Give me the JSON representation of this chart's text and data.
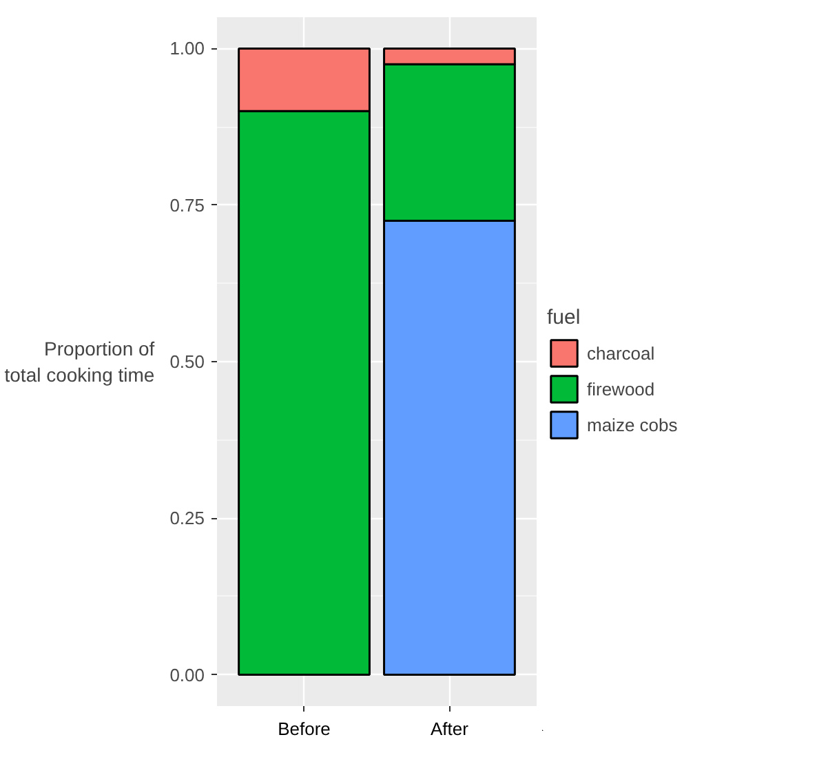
{
  "chart_data": {
    "type": "bar",
    "stacked": true,
    "categories": [
      "Before",
      "After"
    ],
    "ylabel": "Proportion of\ntotal cooking time",
    "legend_title": "fuel",
    "legend": "right",
    "ylim": [
      -0.05,
      1.05
    ],
    "yticks": [
      {
        "value": 0,
        "label": "0.00"
      },
      {
        "value": 0.25,
        "label": "0.25"
      },
      {
        "value": 0.5,
        "label": "0.50"
      },
      {
        "value": 0.75,
        "label": "0.75"
      },
      {
        "value": 1,
        "label": "1.00"
      }
    ],
    "grid": true,
    "series": [
      {
        "name": "maize cobs",
        "color": "#619cff",
        "values": [
          0,
          0.725
        ]
      },
      {
        "name": "firewood",
        "color": "#00ba38",
        "values": [
          0.9,
          0.25
        ]
      },
      {
        "name": "charcoal",
        "color": "#f8766d",
        "values": [
          0.1,
          0.025
        ]
      }
    ]
  }
}
